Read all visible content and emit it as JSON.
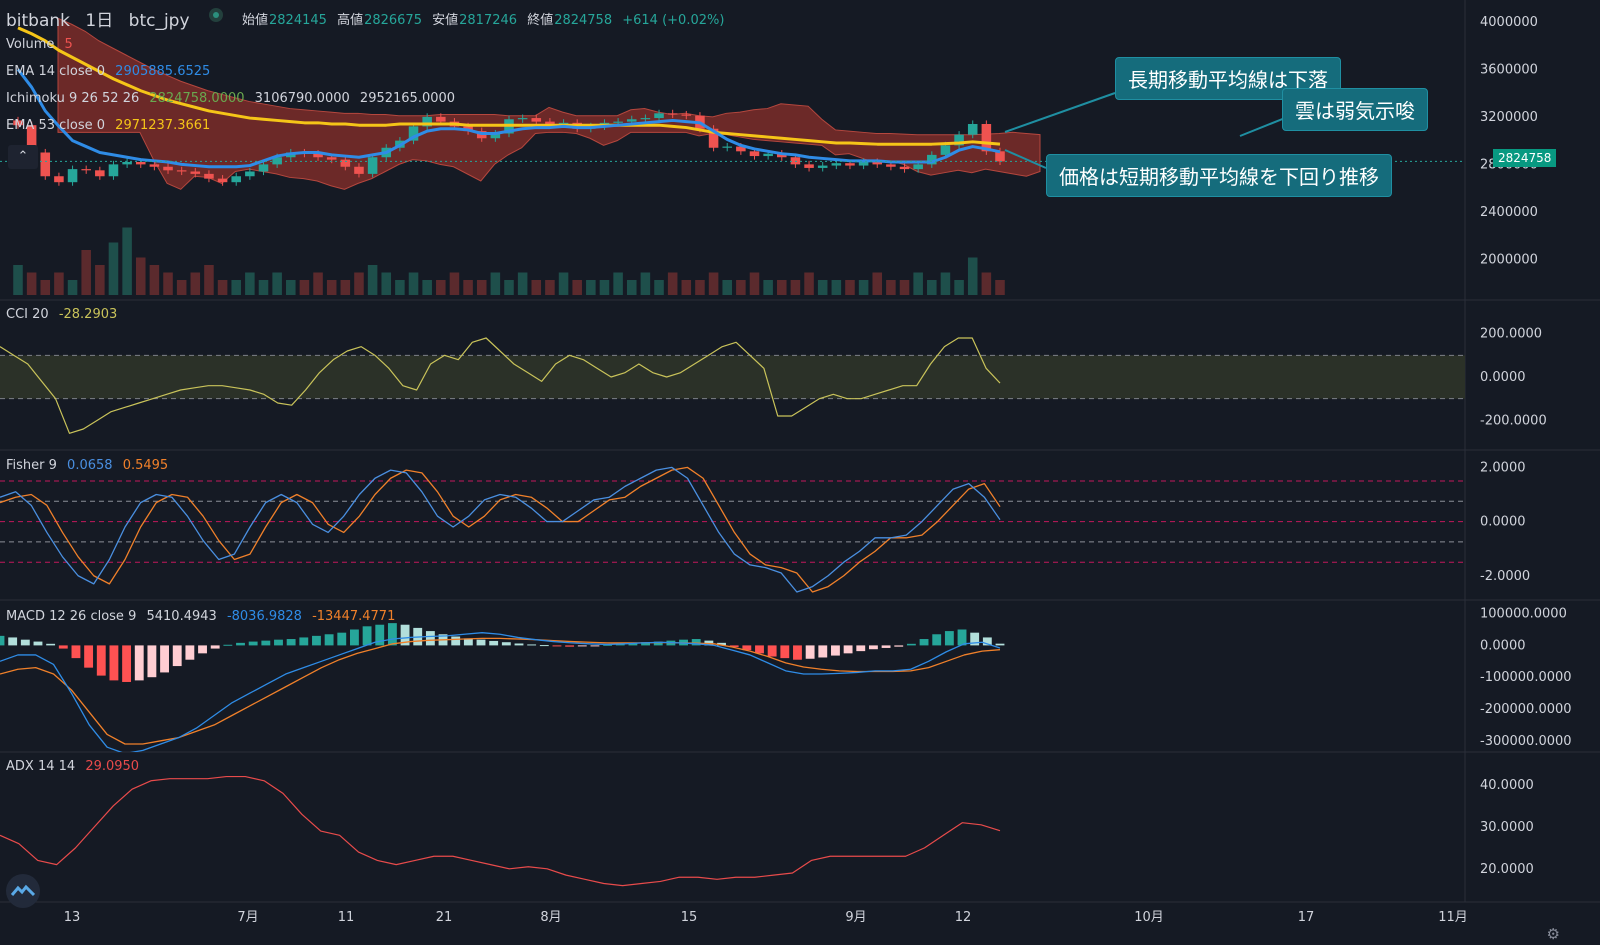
{
  "header": {
    "exchange": "bitbank",
    "interval": "1日",
    "symbol": "btc_jpy",
    "open_label": "始値",
    "open": "2824145",
    "high_label": "高値",
    "high": "2826675",
    "low_label": "安値",
    "low": "2817246",
    "close_label": "終値",
    "close": "2824758",
    "change": "+614 (+0.02%)"
  },
  "legends": {
    "volume": {
      "name": "Volume",
      "value": "5"
    },
    "ema14": {
      "name": "EMA 14 close 0",
      "value": "2905885.6525"
    },
    "ichimoku": {
      "name": "Ichimoku 9 26 52 26",
      "v1": "2824758.0000",
      "v2": "3106790.0000",
      "v3": "2952165.0000"
    },
    "ema53": {
      "name": "EMA 53 close 0",
      "value": "2971237.3661"
    },
    "cci": {
      "name": "CCI 20",
      "value": "-28.2903"
    },
    "fisher": {
      "name": "Fisher 9",
      "v1": "0.0658",
      "v2": "0.5495"
    },
    "macd": {
      "name": "MACD 12 26 close 9",
      "v1": "5410.4943",
      "v2": "-8036.9828",
      "v3": "-13447.4771"
    },
    "adx": {
      "name": "ADX 14 14",
      "value": "29.0950"
    }
  },
  "annotations": {
    "long_ma": "長期移動平均線は下落",
    "cloud": "雲は弱気示唆",
    "price_below": "価格は短期移動平均線を下回り推移"
  },
  "price_tag": "2824758",
  "collapse_glyph": "⌃",
  "gear_glyph": "⚙",
  "colors": {
    "background": "#151a24",
    "up": "#26a69a",
    "down": "#ef5350",
    "ema14": "#2f8ce6",
    "ema53": "#f5c518",
    "cci": "#c9c35a",
    "fisher_main": "#4a8fe0",
    "fisher_signal": "#f0802a",
    "adx": "#e84b4b",
    "callout": "#156c7c"
  },
  "chart_data": [
    {
      "type": "candlestick",
      "pane": "price",
      "title": "bitbank 1日 btc_jpy",
      "x_tick_labels": [
        "13",
        "7月",
        "11",
        "21",
        "8月",
        "15",
        "9月",
        "12",
        "10月",
        "17",
        "11月"
      ],
      "y_tick_labels": [
        "4000000",
        "3600000",
        "3200000",
        "2800000",
        "2400000",
        "2000000"
      ],
      "ylim": [
        1700000,
        4100000
      ],
      "last_price": 2824758,
      "close_series": [
        3130000,
        2900000,
        2700000,
        2650000,
        2760000,
        2750000,
        2700000,
        2800000,
        2820000,
        2800000,
        2780000,
        2750000,
        2740000,
        2720000,
        2680000,
        2650000,
        2700000,
        2740000,
        2800000,
        2860000,
        2900000,
        2890000,
        2860000,
        2840000,
        2780000,
        2720000,
        2860000,
        2940000,
        3000000,
        3120000,
        3200000,
        3160000,
        3120000,
        3080000,
        3020000,
        3060000,
        3180000,
        3190000,
        3160000,
        3140000,
        3150000,
        3100000,
        3120000,
        3150000,
        3160000,
        3180000,
        3190000,
        3230000,
        3220000,
        3210000,
        3100000,
        2940000,
        2950000,
        2910000,
        2870000,
        2890000,
        2860000,
        2800000,
        2770000,
        2790000,
        2810000,
        2790000,
        2820000,
        2800000,
        2780000,
        2760000,
        2800000,
        2880000,
        2960000,
        3050000,
        3140000,
        2910000,
        2825000
      ],
      "ema14_series": [
        3600000,
        3450000,
        3250000,
        3120000,
        3000000,
        2950000,
        2900000,
        2880000,
        2860000,
        2840000,
        2830000,
        2820000,
        2800000,
        2790000,
        2780000,
        2780000,
        2780000,
        2790000,
        2830000,
        2870000,
        2890000,
        2900000,
        2900000,
        2880000,
        2870000,
        2860000,
        2880000,
        2900000,
        2960000,
        3030000,
        3080000,
        3100000,
        3100000,
        3090000,
        3060000,
        3060000,
        3080000,
        3100000,
        3110000,
        3110000,
        3120000,
        3110000,
        3110000,
        3120000,
        3130000,
        3140000,
        3150000,
        3160000,
        3170000,
        3160000,
        3150000,
        3080000,
        3010000,
        2960000,
        2930000,
        2910000,
        2890000,
        2880000,
        2860000,
        2850000,
        2840000,
        2830000,
        2830000,
        2830000,
        2820000,
        2820000,
        2820000,
        2820000,
        2860000,
        2920000,
        2950000,
        2930000,
        2906000
      ],
      "ema53_series": [
        3950000,
        3900000,
        3840000,
        3760000,
        3700000,
        3640000,
        3580000,
        3520000,
        3470000,
        3420000,
        3380000,
        3340000,
        3310000,
        3280000,
        3250000,
        3230000,
        3210000,
        3190000,
        3180000,
        3170000,
        3160000,
        3150000,
        3150000,
        3140000,
        3140000,
        3130000,
        3130000,
        3130000,
        3140000,
        3140000,
        3140000,
        3140000,
        3140000,
        3130000,
        3130000,
        3130000,
        3130000,
        3130000,
        3130000,
        3130000,
        3130000,
        3130000,
        3130000,
        3130000,
        3130000,
        3130000,
        3130000,
        3130000,
        3120000,
        3110000,
        3090000,
        3070000,
        3060000,
        3050000,
        3040000,
        3030000,
        3020000,
        3010000,
        3000000,
        2990000,
        2980000,
        2980000,
        2975000,
        2970000,
        2970000,
        2970000,
        2970000,
        2970000,
        2975000,
        2980000,
        2990000,
        2980000,
        2971000
      ],
      "volume_series": [
        4,
        3,
        2,
        3,
        2,
        6,
        4,
        7,
        9,
        5,
        4,
        3,
        2,
        3,
        4,
        2,
        2,
        3,
        2,
        3,
        2,
        2,
        3,
        2,
        2,
        3,
        4,
        3,
        2,
        3,
        2,
        2,
        3,
        2,
        2,
        3,
        2,
        3,
        2,
        2,
        3,
        2,
        2,
        2,
        3,
        2,
        3,
        2,
        3,
        2,
        2,
        3,
        2,
        2,
        3,
        2,
        2,
        2,
        3,
        2,
        2,
        2,
        2,
        3,
        2,
        2,
        3,
        2,
        3,
        2,
        5,
        3,
        2
      ]
    },
    {
      "type": "line",
      "pane": "cci",
      "y_tick_labels": [
        "200.0000",
        "0.0000",
        "-200.0000"
      ],
      "ylim": [
        -300,
        300
      ],
      "bands": [
        100,
        -100
      ],
      "series": [
        {
          "name": "CCI 20",
          "values": [
            140,
            100,
            60,
            -20,
            -100,
            -260,
            -240,
            -200,
            -160,
            -140,
            -120,
            -100,
            -80,
            -60,
            -50,
            -40,
            -40,
            -50,
            -60,
            -80,
            -120,
            -130,
            -60,
            20,
            80,
            120,
            140,
            100,
            40,
            -40,
            -60,
            60,
            100,
            80,
            160,
            180,
            120,
            60,
            20,
            -20,
            60,
            100,
            80,
            40,
            0,
            20,
            60,
            20,
            0,
            20,
            60,
            100,
            140,
            160,
            100,
            40,
            -180,
            -180,
            -140,
            -100,
            -80,
            -100,
            -100,
            -80,
            -60,
            -40,
            -40,
            60,
            140,
            180,
            180,
            40,
            -28
          ]
        }
      ]
    },
    {
      "type": "line",
      "pane": "fisher",
      "y_tick_labels": [
        "2.0000",
        "0.0000",
        "-2.0000"
      ],
      "ylim": [
        -2.6,
        2.2
      ],
      "bands": [
        1.5,
        0.75,
        0,
        -0.75,
        -1.5
      ],
      "series": [
        {
          "name": "Fisher 9",
          "values": [
            0.9,
            1.1,
            0.6,
            -0.4,
            -1.3,
            -2.0,
            -2.3,
            -1.4,
            -0.2,
            0.7,
            1.0,
            0.9,
            0.2,
            -0.7,
            -1.4,
            -1.2,
            -0.2,
            0.7,
            1.0,
            0.7,
            -0.1,
            -0.4,
            0.2,
            1.0,
            1.6,
            1.9,
            1.8,
            1.1,
            0.2,
            -0.2,
            0.2,
            0.8,
            1.0,
            0.9,
            0.5,
            0.0,
            0.0,
            0.4,
            0.8,
            0.9,
            1.3,
            1.6,
            1.9,
            2.0,
            1.6,
            0.6,
            -0.4,
            -1.2,
            -1.6,
            -1.7,
            -1.9,
            -2.6,
            -2.4,
            -2.0,
            -1.5,
            -1.1,
            -0.6,
            -0.6,
            -0.5,
            0.0,
            0.6,
            1.2,
            1.4,
            0.9,
            0.07
          ]
        },
        {
          "name": "Fisher signal",
          "values": [
            0.7,
            0.9,
            1.0,
            0.6,
            -0.4,
            -1.3,
            -2.0,
            -2.3,
            -1.4,
            -0.2,
            0.7,
            1.0,
            0.9,
            0.2,
            -0.7,
            -1.4,
            -1.2,
            -0.2,
            0.7,
            1.0,
            0.7,
            -0.1,
            -0.4,
            0.2,
            1.0,
            1.6,
            1.9,
            1.8,
            1.1,
            0.2,
            -0.2,
            0.2,
            0.8,
            1.0,
            0.9,
            0.5,
            0.0,
            0.0,
            0.4,
            0.8,
            0.9,
            1.3,
            1.6,
            1.9,
            2.0,
            1.6,
            0.6,
            -0.4,
            -1.2,
            -1.6,
            -1.7,
            -1.9,
            -2.6,
            -2.4,
            -2.0,
            -1.5,
            -1.1,
            -0.6,
            -0.6,
            -0.5,
            0.0,
            0.6,
            1.2,
            1.4,
            0.55
          ]
        }
      ]
    },
    {
      "type": "line+bar",
      "pane": "macd",
      "y_tick_labels": [
        "100000.0000",
        "0.0000",
        "-100000.0000",
        "-200000.0000",
        "-300000.0000"
      ],
      "ylim": [
        -310000,
        105000
      ],
      "histogram": [
        30000,
        25000,
        18000,
        12000,
        5000,
        -10000,
        -40000,
        -70000,
        -95000,
        -110000,
        -115000,
        -110000,
        -100000,
        -85000,
        -65000,
        -45000,
        -25000,
        -10000,
        2000,
        8000,
        12000,
        15000,
        18000,
        20000,
        25000,
        30000,
        35000,
        40000,
        50000,
        60000,
        65000,
        70000,
        65000,
        55000,
        45000,
        35000,
        28000,
        22000,
        18000,
        14000,
        10000,
        6000,
        3000,
        1000,
        -2000,
        -4000,
        -3000,
        -2000,
        2000,
        5000,
        8000,
        10000,
        12000,
        15000,
        18000,
        20000,
        15000,
        8000,
        -5000,
        -15000,
        -25000,
        -35000,
        -40000,
        -45000,
        -42000,
        -38000,
        -32000,
        -25000,
        -18000,
        -12000,
        -8000,
        -4000,
        5000,
        20000,
        35000,
        45000,
        50000,
        40000,
        25000,
        5410
      ],
      "series": [
        {
          "name": "MACD",
          "values": [
            -50000,
            -30000,
            -30000,
            -60000,
            -150000,
            -250000,
            -320000,
            -340000,
            -330000,
            -310000,
            -290000,
            -260000,
            -220000,
            -180000,
            -150000,
            -120000,
            -90000,
            -70000,
            -50000,
            -30000,
            -10000,
            10000,
            20000,
            25000,
            28000,
            30000,
            35000,
            40000,
            35000,
            25000,
            18000,
            12000,
            8000,
            5000,
            3000,
            5000,
            8000,
            10000,
            8000,
            5000,
            0,
            -15000,
            -30000,
            -55000,
            -80000,
            -90000,
            -90000,
            -88000,
            -85000,
            -80000,
            -80000,
            -75000,
            -50000,
            -20000,
            5000,
            10000,
            -8037
          ]
        },
        {
          "name": "Signal",
          "values": [
            -90000,
            -75000,
            -70000,
            -90000,
            -140000,
            -210000,
            -280000,
            -310000,
            -310000,
            -300000,
            -290000,
            -270000,
            -250000,
            -220000,
            -190000,
            -160000,
            -130000,
            -100000,
            -70000,
            -45000,
            -25000,
            -10000,
            5000,
            12000,
            16000,
            18000,
            20000,
            22000,
            22000,
            20000,
            18000,
            15000,
            12000,
            10000,
            8000,
            8000,
            8000,
            9000,
            8000,
            7000,
            5000,
            -5000,
            -18000,
            -35000,
            -55000,
            -68000,
            -75000,
            -80000,
            -82000,
            -82000,
            -82000,
            -80000,
            -70000,
            -50000,
            -30000,
            -18000,
            -13447
          ]
        }
      ]
    },
    {
      "type": "line",
      "pane": "adx",
      "y_tick_labels": [
        "40.0000",
        "30.0000",
        "20.0000"
      ],
      "ylim": [
        14,
        45
      ],
      "series": [
        {
          "name": "ADX 14 14",
          "values": [
            28,
            26,
            22,
            21,
            25,
            30,
            35,
            39,
            41,
            41.5,
            41.5,
            41.5,
            42,
            42,
            41,
            38,
            33,
            29,
            28,
            24,
            22,
            21,
            22,
            23,
            23,
            22,
            21,
            20,
            20.5,
            20,
            18.5,
            17.5,
            16.5,
            16,
            16.5,
            17,
            18,
            18,
            17.5,
            18,
            18,
            18.5,
            19,
            22,
            23,
            23,
            23,
            23,
            23,
            25,
            28,
            31,
            30.5,
            29.1
          ]
        }
      ]
    }
  ]
}
